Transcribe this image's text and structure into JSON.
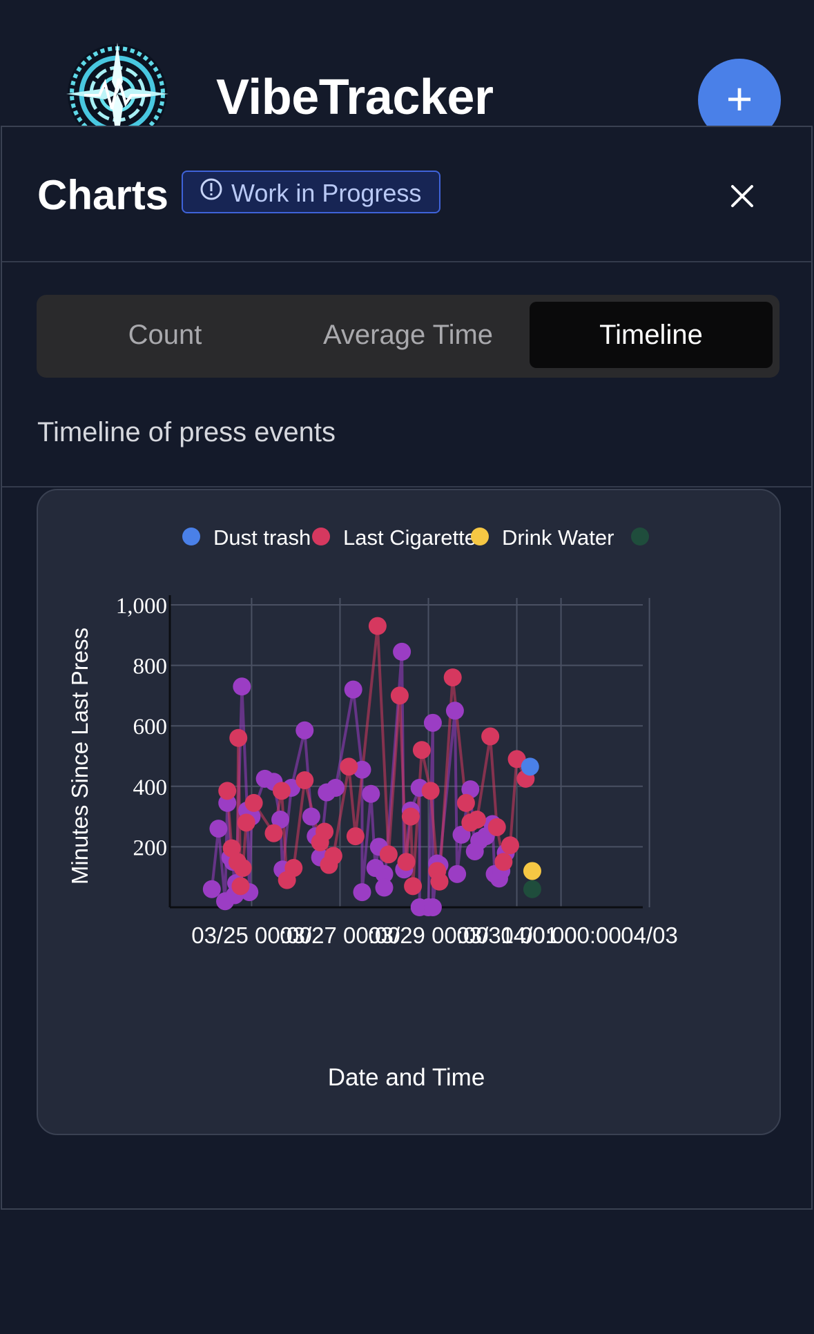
{
  "header": {
    "app_title": "VibeTracker",
    "add_button_label": "+"
  },
  "panel": {
    "title": "Charts",
    "badge": "Work in Progress",
    "close_icon": "close-icon"
  },
  "tabs": [
    {
      "label": "Count",
      "active": false
    },
    {
      "label": "Average Time",
      "active": false
    },
    {
      "label": "Timeline",
      "active": true
    }
  ],
  "subtitle": "Timeline of press events",
  "colors": {
    "accent": "#4a80e8",
    "dust_trash": "#4a80e8",
    "last_cigarette": "#d6385f",
    "drink_water": "#f6c744",
    "fourth_series": "#1f4d3c",
    "purple_series": "#9b3dc4"
  },
  "chart_data": {
    "type": "scatter",
    "xlabel": "Date and Time",
    "ylabel": "Minutes Since Last Press",
    "x_tick_labels": [
      "03/25 00:00",
      "03/27 00:00",
      "03/29 00:00",
      "03/31 00:00",
      "04/01 00:00",
      "04/03"
    ],
    "x_tick_positions_days": [
      0,
      2,
      4,
      6,
      7,
      9
    ],
    "x_range_days": [
      -1.85,
      8.85
    ],
    "y_ticks": [
      200,
      400,
      600,
      800,
      1000
    ],
    "y_tick_labels": [
      "200",
      "400",
      "600",
      "800",
      "1,000"
    ],
    "ylim": [
      0,
      1000
    ],
    "grid": true,
    "legend": {
      "placement": "top",
      "entries": [
        "Dust trash",
        "Last Cigarette",
        "Drink Water",
        ""
      ]
    },
    "series": [
      {
        "name": "",
        "color": "#9b3dc4",
        "line": true,
        "points": [
          [
            -0.9,
            60
          ],
          [
            -0.75,
            260
          ],
          [
            -0.6,
            20
          ],
          [
            -0.55,
            345
          ],
          [
            -0.48,
            165
          ],
          [
            -0.42,
            150
          ],
          [
            -0.38,
            40
          ],
          [
            -0.35,
            80
          ],
          [
            -0.22,
            730
          ],
          [
            -0.1,
            320
          ],
          [
            0.0,
            300
          ],
          [
            -0.05,
            50
          ],
          [
            0.3,
            425
          ],
          [
            0.5,
            415
          ],
          [
            0.65,
            290
          ],
          [
            0.7,
            125
          ],
          [
            0.9,
            395
          ],
          [
            1.2,
            585
          ],
          [
            1.35,
            300
          ],
          [
            1.45,
            235
          ],
          [
            1.55,
            165
          ],
          [
            1.7,
            380
          ],
          [
            1.9,
            395
          ],
          [
            2.3,
            720
          ],
          [
            2.5,
            455
          ],
          [
            2.5,
            50
          ],
          [
            2.7,
            375
          ],
          [
            2.8,
            130
          ],
          [
            2.88,
            200
          ],
          [
            3.0,
            110
          ],
          [
            3.0,
            65
          ],
          [
            3.4,
            845
          ],
          [
            3.45,
            125
          ],
          [
            3.6,
            320
          ],
          [
            3.8,
            395
          ],
          [
            3.8,
            0
          ],
          [
            4.1,
            610
          ],
          [
            4.0,
            0
          ],
          [
            4.2,
            145
          ],
          [
            4.1,
            0
          ],
          [
            4.25,
            140
          ],
          [
            4.6,
            650
          ],
          [
            4.65,
            110
          ],
          [
            4.75,
            240
          ],
          [
            4.95,
            390
          ],
          [
            5.05,
            185
          ],
          [
            5.15,
            220
          ],
          [
            5.3,
            235
          ],
          [
            5.45,
            275
          ],
          [
            5.5,
            110
          ],
          [
            5.6,
            95
          ],
          [
            5.65,
            120
          ],
          [
            5.75,
            180
          ]
        ]
      },
      {
        "name": "Last Cigarette",
        "color": "#d6385f",
        "line": true,
        "points": [
          [
            -0.55,
            385
          ],
          [
            -0.45,
            195
          ],
          [
            -0.32,
            150
          ],
          [
            -0.3,
            560
          ],
          [
            -0.25,
            70
          ],
          [
            -0.2,
            130
          ],
          [
            -0.12,
            280
          ],
          [
            0.05,
            345
          ],
          [
            0.5,
            245
          ],
          [
            0.68,
            385
          ],
          [
            0.8,
            90
          ],
          [
            0.95,
            130
          ],
          [
            1.2,
            420
          ],
          [
            1.55,
            215
          ],
          [
            1.65,
            250
          ],
          [
            1.75,
            140
          ],
          [
            1.85,
            170
          ],
          [
            2.2,
            465
          ],
          [
            2.35,
            235
          ],
          [
            2.85,
            930
          ],
          [
            3.1,
            175
          ],
          [
            3.35,
            700
          ],
          [
            3.5,
            150
          ],
          [
            3.6,
            300
          ],
          [
            3.65,
            70
          ],
          [
            3.85,
            520
          ],
          [
            4.05,
            385
          ],
          [
            4.2,
            120
          ],
          [
            4.25,
            85
          ],
          [
            4.55,
            760
          ],
          [
            4.85,
            345
          ],
          [
            4.95,
            280
          ],
          [
            5.1,
            290
          ],
          [
            5.4,
            565
          ],
          [
            5.55,
            265
          ],
          [
            5.7,
            150
          ],
          [
            5.85,
            205
          ],
          [
            6.0,
            490
          ],
          [
            6.2,
            425
          ]
        ]
      },
      {
        "name": "Dust trash",
        "color": "#4a80e8",
        "line": false,
        "points": [
          [
            6.3,
            465
          ]
        ]
      },
      {
        "name": "Drink Water",
        "color": "#f6c744",
        "line": false,
        "points": [
          [
            6.35,
            120
          ]
        ]
      },
      {
        "name": "",
        "color": "#1f4d3c",
        "line": false,
        "points": [
          [
            6.35,
            60
          ]
        ]
      }
    ]
  }
}
